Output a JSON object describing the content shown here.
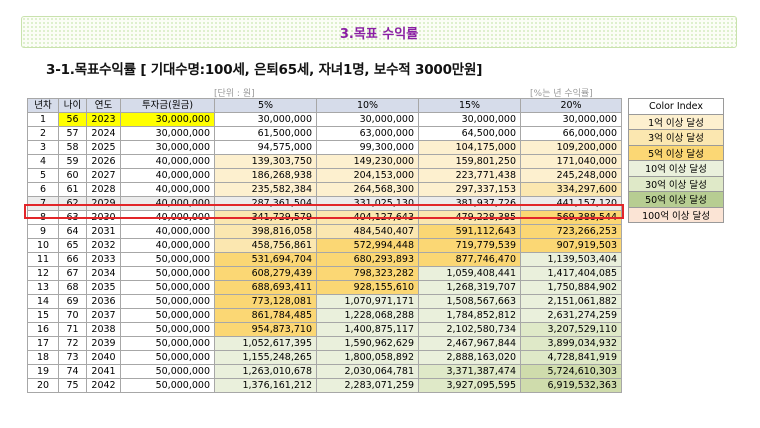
{
  "slide": {
    "title": "3.목표 수익률",
    "subtitle": "3-1.목표수익률 [ 기대수명:100세, 은퇴65세, 자녀1명, 보수적 3000만원]",
    "unit_note": "[단위 : 원]",
    "rate_note": "[%는 년 수익률]"
  },
  "table": {
    "headers": [
      "년차",
      "나이",
      "연도",
      "투자금(원금)",
      "5%",
      "10%",
      "15%",
      "20%"
    ],
    "rows": [
      [
        "1",
        "56",
        "2023",
        "30,000,000",
        "30,000,000",
        "30,000,000",
        "30,000,000",
        "30,000,000"
      ],
      [
        "2",
        "57",
        "2024",
        "30,000,000",
        "61,500,000",
        "63,000,000",
        "64,500,000",
        "66,000,000"
      ],
      [
        "3",
        "58",
        "2025",
        "30,000,000",
        "94,575,000",
        "99,300,000",
        "104,175,000",
        "109,200,000"
      ],
      [
        "4",
        "59",
        "2026",
        "40,000,000",
        "139,303,750",
        "149,230,000",
        "159,801,250",
        "171,040,000"
      ],
      [
        "5",
        "60",
        "2027",
        "40,000,000",
        "186,268,938",
        "204,153,000",
        "223,771,438",
        "245,248,000"
      ],
      [
        "6",
        "61",
        "2028",
        "40,000,000",
        "235,582,384",
        "264,568,300",
        "297,337,153",
        "334,297,600"
      ],
      [
        "7",
        "62",
        "2029",
        "40,000,000",
        "287,361,504",
        "331,025,130",
        "381,937,726",
        "441,157,120"
      ],
      [
        "8",
        "63",
        "2030",
        "40,000,000",
        "341,729,579",
        "404,127,643",
        "479,228,385",
        "569,388,544"
      ],
      [
        "9",
        "64",
        "2031",
        "40,000,000",
        "398,816,058",
        "484,540,407",
        "591,112,643",
        "723,266,253"
      ],
      [
        "10",
        "65",
        "2032",
        "40,000,000",
        "458,756,861",
        "572,994,448",
        "719,779,539",
        "907,919,503"
      ],
      [
        "11",
        "66",
        "2033",
        "50,000,000",
        "531,694,704",
        "680,293,893",
        "877,746,470",
        "1,139,503,404"
      ],
      [
        "12",
        "67",
        "2034",
        "50,000,000",
        "608,279,439",
        "798,323,282",
        "1,059,408,441",
        "1,417,404,085"
      ],
      [
        "13",
        "68",
        "2035",
        "50,000,000",
        "688,693,411",
        "928,155,610",
        "1,268,319,707",
        "1,750,884,902"
      ],
      [
        "14",
        "69",
        "2036",
        "50,000,000",
        "773,128,081",
        "1,070,971,171",
        "1,508,567,663",
        "2,151,061,882"
      ],
      [
        "15",
        "70",
        "2037",
        "50,000,000",
        "861,784,485",
        "1,228,068,288",
        "1,784,852,812",
        "2,631,274,259"
      ],
      [
        "16",
        "71",
        "2038",
        "50,000,000",
        "954,873,710",
        "1,400,875,117",
        "2,102,580,734",
        "3,207,529,110"
      ],
      [
        "17",
        "72",
        "2039",
        "50,000,000",
        "1,052,617,395",
        "1,590,962,629",
        "2,467,967,844",
        "3,899,034,932"
      ],
      [
        "18",
        "73",
        "2040",
        "50,000,000",
        "1,155,248,265",
        "1,800,058,892",
        "2,888,163,020",
        "4,728,841,919"
      ],
      [
        "19",
        "74",
        "2041",
        "50,000,000",
        "1,263,010,678",
        "2,030,064,781",
        "3,371,387,474",
        "5,724,610,303"
      ],
      [
        "20",
        "75",
        "2042",
        "50,000,000",
        "1,376,161,212",
        "2,283,071,259",
        "3,927,095,595",
        "6,919,532,363"
      ]
    ]
  },
  "legend": {
    "title": "Color Index",
    "items": [
      {
        "label": "1억 이상 달성",
        "color": "#fdf0cf"
      },
      {
        "label": "3억 이상 달성",
        "color": "#fbe7b0"
      },
      {
        "label": "5억 이상 달성",
        "color": "#fbd774"
      },
      {
        "label": "10억 이상 달성",
        "color": "#eaf0dc"
      },
      {
        "label": "30억 이상 달성",
        "color": "#dfe9c8"
      },
      {
        "label": "50억 이상 달성",
        "color": "#b7cd92"
      },
      {
        "label": "100억 이상 달성",
        "color": "#fbe4d5"
      }
    ]
  },
  "highlight": {
    "row": "7",
    "border_color": "#e2262a"
  }
}
